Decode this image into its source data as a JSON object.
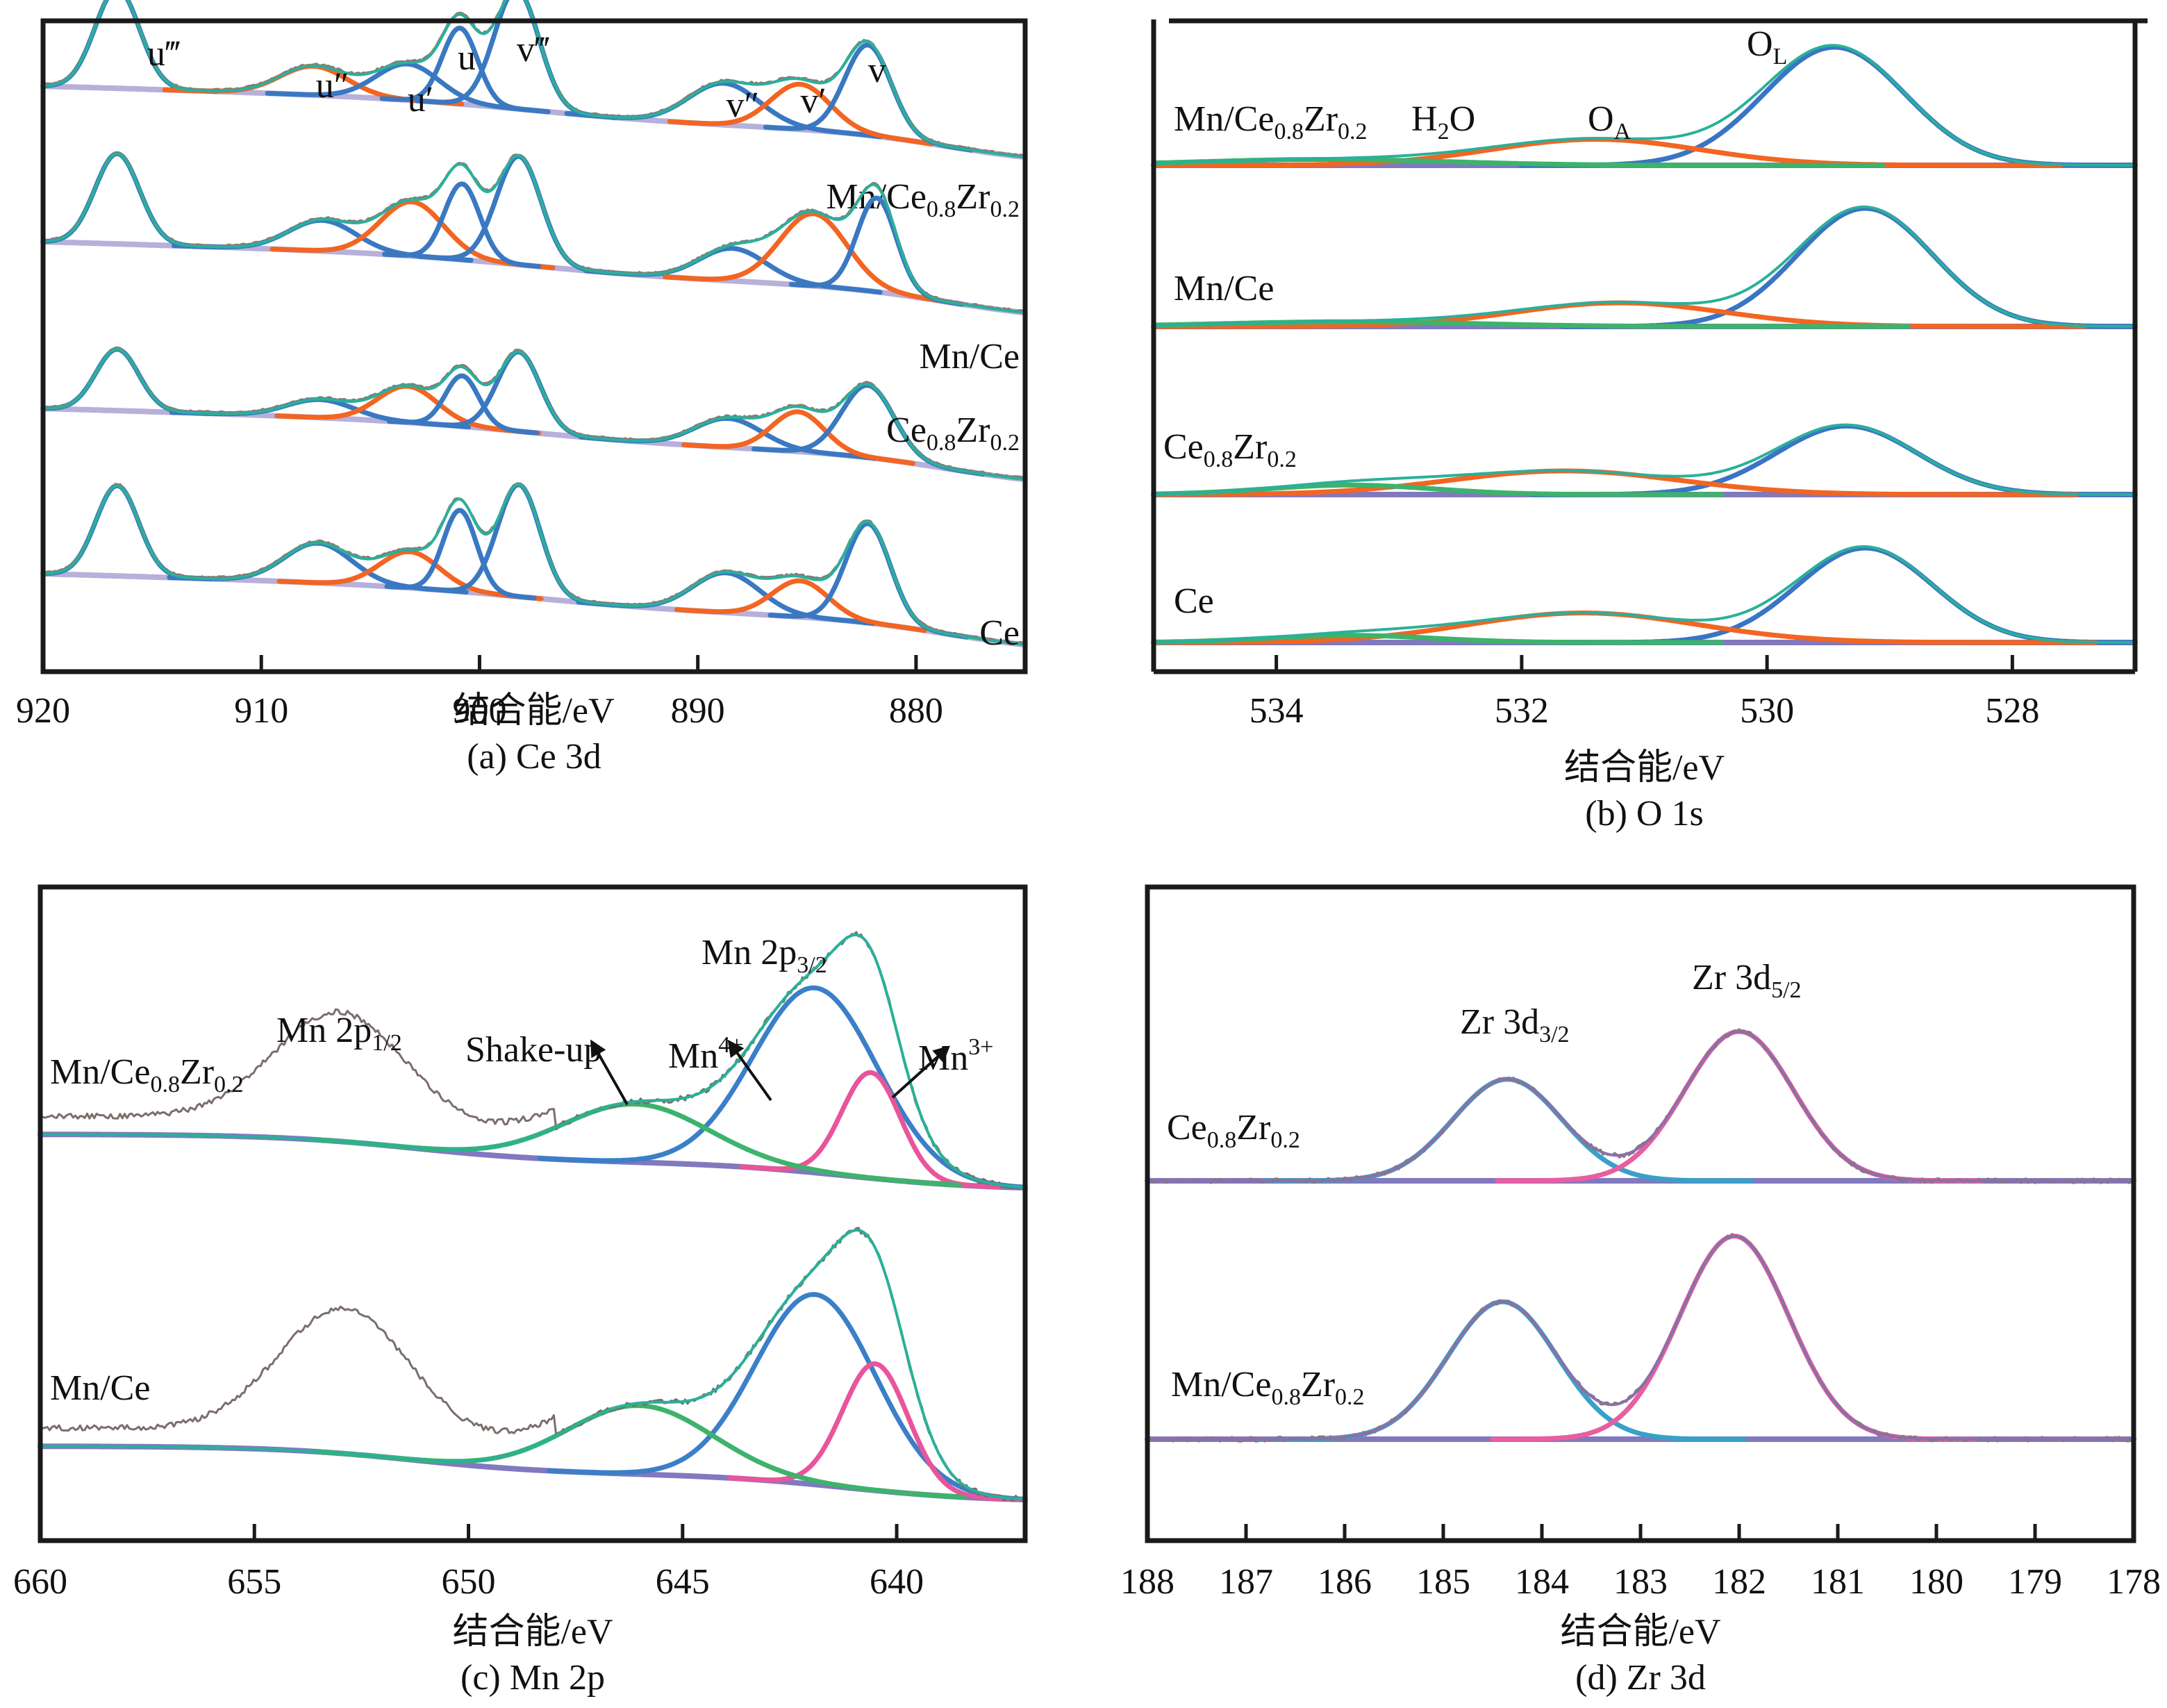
{
  "figure": {
    "axis_title": "结合能/eV",
    "y_axis": "Intensity (a.u., stacked, no ticks)"
  },
  "chart_data": [
    {
      "id": "a",
      "type": "line",
      "title": "(a) Ce 3d",
      "xlabel": "结合能/eV",
      "ylabel": "",
      "xlim": [
        920,
        875
      ],
      "xticks": [
        920,
        910,
        900,
        890,
        880
      ],
      "grid": false,
      "component_colors": {
        "Ce4+": "#3a78c2",
        "Ce3+": "#f26522",
        "envelope": "#2ab09a",
        "fit": "#3aa3c4",
        "background": "#aaa2d4",
        "raw": "#8a7a78"
      },
      "peak_labels": [
        {
          "text": "u",
          "primes": "‴",
          "x": 916.5
        },
        {
          "text": "u",
          "primes": "″",
          "x": 907.5
        },
        {
          "text": "u",
          "primes": "′",
          "x": 903.3
        },
        {
          "text": "u",
          "primes": "",
          "x": 901.0
        },
        {
          "text": "v",
          "primes": "‴",
          "x": 898.3
        },
        {
          "text": "v",
          "primes": "″",
          "x": 888.7
        },
        {
          "text": "v",
          "primes": "′",
          "x": 885.3
        },
        {
          "text": "v",
          "primes": "",
          "x": 882.2
        }
      ],
      "series": [
        {
          "name": "Mn/Ce0.8Zr0.2",
          "label": {
            "base": "Mn/Ce",
            "s1": "0.8",
            "mid": "Zr",
            "s2": "0.2"
          },
          "peaks": [
            {
              "component": "Ce4+",
              "center": 916.6,
              "fwhm": 2.4,
              "height": 0.55,
              "tag": "u‴"
            },
            {
              "component": "Ce3+",
              "center": 907.6,
              "fwhm": 3.6,
              "height": 0.16,
              "tag": "u″"
            },
            {
              "component": "Ce4+",
              "center": 903.3,
              "fwhm": 3.4,
              "height": 0.2,
              "tag": "u′"
            },
            {
              "component": "Ce4+",
              "center": 900.9,
              "fwhm": 1.9,
              "height": 0.42,
              "tag": "u"
            },
            {
              "component": "Ce4+",
              "center": 898.3,
              "fwhm": 2.4,
              "height": 0.66,
              "tag": "v‴"
            },
            {
              "component": "Ce4+",
              "center": 888.8,
              "fwhm": 3.8,
              "height": 0.23,
              "tag": "v″"
            },
            {
              "component": "Ce3+",
              "center": 885.3,
              "fwhm": 3.2,
              "height": 0.25,
              "tag": "v′"
            },
            {
              "component": "Ce4+",
              "center": 882.2,
              "fwhm": 2.5,
              "height": 0.5,
              "tag": "v"
            }
          ]
        },
        {
          "name": "Mn/Ce",
          "label": {
            "base": "Mn/Ce",
            "s1": "",
            "mid": "",
            "s2": ""
          },
          "peaks": [
            {
              "component": "Ce4+",
              "center": 916.6,
              "fwhm": 2.4,
              "height": 0.5
            },
            {
              "component": "Ce4+",
              "center": 907.2,
              "fwhm": 3.6,
              "height": 0.17
            },
            {
              "component": "Ce3+",
              "center": 903.1,
              "fwhm": 3.4,
              "height": 0.3
            },
            {
              "component": "Ce4+",
              "center": 900.8,
              "fwhm": 1.9,
              "height": 0.42
            },
            {
              "component": "Ce4+",
              "center": 898.2,
              "fwhm": 2.4,
              "height": 0.6
            },
            {
              "component": "Ce4+",
              "center": 888.4,
              "fwhm": 3.6,
              "height": 0.18
            },
            {
              "component": "Ce3+",
              "center": 884.7,
              "fwhm": 3.6,
              "height": 0.4
            },
            {
              "component": "Ce4+",
              "center": 881.8,
              "fwhm": 2.1,
              "height": 0.52
            }
          ]
        },
        {
          "name": "Ce0.8Zr0.2",
          "label": {
            "base": "Ce",
            "s1": "0.8",
            "mid": "Zr",
            "s2": "0.2"
          },
          "peaks": [
            {
              "component": "Ce4+",
              "center": 916.6,
              "fwhm": 2.3,
              "height": 0.34
            },
            {
              "component": "Ce4+",
              "center": 907.3,
              "fwhm": 3.6,
              "height": 0.1
            },
            {
              "component": "Ce3+",
              "center": 903.3,
              "fwhm": 3.2,
              "height": 0.2
            },
            {
              "component": "Ce4+",
              "center": 900.8,
              "fwhm": 1.8,
              "height": 0.28
            },
            {
              "component": "Ce4+",
              "center": 898.2,
              "fwhm": 2.3,
              "height": 0.44
            },
            {
              "component": "Ce4+",
              "center": 888.6,
              "fwhm": 3.6,
              "height": 0.16
            },
            {
              "component": "Ce3+",
              "center": 885.4,
              "fwhm": 2.8,
              "height": 0.22
            },
            {
              "component": "Ce4+",
              "center": 882.2,
              "fwhm": 2.8,
              "height": 0.4
            }
          ]
        },
        {
          "name": "Ce",
          "label": {
            "base": "Ce",
            "s1": "",
            "mid": "",
            "s2": ""
          },
          "peaks": [
            {
              "component": "Ce4+",
              "center": 916.6,
              "fwhm": 2.3,
              "height": 0.5
            },
            {
              "component": "Ce4+",
              "center": 907.4,
              "fwhm": 3.6,
              "height": 0.22
            },
            {
              "component": "Ce3+",
              "center": 903.2,
              "fwhm": 3.2,
              "height": 0.2
            },
            {
              "component": "Ce4+",
              "center": 900.9,
              "fwhm": 1.8,
              "height": 0.45
            },
            {
              "component": "Ce4+",
              "center": 898.2,
              "fwhm": 2.3,
              "height": 0.62
            },
            {
              "component": "Ce4+",
              "center": 888.7,
              "fwhm": 3.6,
              "height": 0.22
            },
            {
              "component": "Ce3+",
              "center": 885.3,
              "fwhm": 3.0,
              "height": 0.2
            },
            {
              "component": "Ce4+",
              "center": 882.2,
              "fwhm": 2.4,
              "height": 0.55
            }
          ]
        }
      ]
    },
    {
      "id": "b",
      "type": "line",
      "title": "(b) O 1s",
      "xlabel": "结合能/eV",
      "ylabel": "",
      "xlim": [
        535,
        527
      ],
      "xticks": [
        534,
        532,
        530,
        528
      ],
      "grid": false,
      "component_colors": {
        "O_L": "#3a74c4",
        "O_A": "#f26522",
        "H2O": "#3db36b",
        "envelope": "#2ab09a",
        "fit": "#3aa3c4",
        "background": "#6a62b4"
      },
      "peak_labels": [
        {
          "text": "O",
          "sub": "L",
          "x": 529.8
        },
        {
          "text": "O",
          "sub": "A",
          "x": 531.4
        },
        {
          "text": "H",
          "sub": "2",
          "after": "O",
          "x": 533.8
        }
      ],
      "series": [
        {
          "name": "Mn/Ce0.8Zr0.2",
          "label": {
            "base": "Mn/Ce",
            "s1": "0.8",
            "mid": "Zr",
            "s2": "0.2"
          },
          "peaks": [
            {
              "component": "O_L",
              "center": 529.45,
              "fwhm": 1.35,
              "height": 1.0
            },
            {
              "component": "O_A",
              "center": 531.4,
              "fwhm": 2.0,
              "height": 0.22
            },
            {
              "component": "H2O",
              "center": 533.6,
              "fwhm": 2.4,
              "height": 0.05
            }
          ]
        },
        {
          "name": "Mn/Ce",
          "label": {
            "base": "Mn/Ce",
            "s1": "",
            "mid": "",
            "s2": ""
          },
          "peaks": [
            {
              "component": "O_L",
              "center": 529.2,
              "fwhm": 1.3,
              "height": 1.0
            },
            {
              "component": "O_A",
              "center": 531.2,
              "fwhm": 2.0,
              "height": 0.2
            },
            {
              "component": "H2O",
              "center": 533.4,
              "fwhm": 2.4,
              "height": 0.04
            }
          ]
        },
        {
          "name": "Ce0.8Zr0.2",
          "label": {
            "base": "Ce",
            "s1": "0.8",
            "mid": "Zr",
            "s2": "0.2"
          },
          "peaks": [
            {
              "component": "O_L",
              "center": 529.35,
              "fwhm": 1.35,
              "height": 0.58
            },
            {
              "component": "O_A",
              "center": 531.65,
              "fwhm": 2.2,
              "height": 0.2
            },
            {
              "component": "H2O",
              "center": 533.4,
              "fwhm": 1.6,
              "height": 0.08
            }
          ]
        },
        {
          "name": "Ce",
          "label": {
            "base": "Ce",
            "s1": "",
            "mid": "",
            "s2": ""
          },
          "peaks": [
            {
              "component": "O_L",
              "center": 529.2,
              "fwhm": 1.3,
              "height": 0.8
            },
            {
              "component": "O_A",
              "center": 531.5,
              "fwhm": 2.2,
              "height": 0.25
            },
            {
              "component": "H2O",
              "center": 533.4,
              "fwhm": 1.6,
              "height": 0.06
            }
          ]
        }
      ]
    },
    {
      "id": "c",
      "type": "line",
      "title": "(c) Mn 2p",
      "xlabel": "结合能/eV",
      "ylabel": "",
      "xlim": [
        660,
        637
      ],
      "xticks": [
        660,
        655,
        650,
        645,
        640
      ],
      "grid": false,
      "component_colors": {
        "Mn4+": "#3a7fc8",
        "Mn3+": "#e8559a",
        "Shake-up": "#3db36b",
        "envelope": "#2ab09a",
        "background": "#6a62b4",
        "raw": "#7a6e6a"
      },
      "peak_labels": [
        {
          "text": "Mn 2p",
          "sub": "3/2",
          "x": 642.5
        },
        {
          "text": "Mn 2p",
          "sub": "1/2",
          "x": 652.5
        },
        {
          "text": "Shake-up",
          "x": 646.9,
          "arrow_to": 646.0
        },
        {
          "text": "Mn",
          "sup": "4+",
          "x": 644.5,
          "arrow_to": 643.5
        },
        {
          "text": "Mn",
          "sup": "3+",
          "x": 638.6,
          "arrow_to": 640.0
        }
      ],
      "series": [
        {
          "name": "Mn/Ce0.8Zr0.2",
          "label": {
            "base": "Mn/Ce",
            "s1": "0.8",
            "mid": "Zr",
            "s2": "0.2"
          },
          "raw_2p12": {
            "center": 653.0,
            "fwhm": 3.6,
            "height": 0.42
          },
          "peaks": [
            {
              "component": "Mn4+",
              "center": 641.9,
              "fwhm": 3.4,
              "height": 0.7
            },
            {
              "component": "Mn3+",
              "center": 640.6,
              "fwhm": 1.6,
              "height": 0.4
            },
            {
              "component": "Shake-up",
              "center": 646.1,
              "fwhm": 4.0,
              "height": 0.22
            }
          ]
        },
        {
          "name": "Mn/Ce",
          "label": {
            "base": "Mn/Ce",
            "s1": "",
            "mid": "",
            "s2": ""
          },
          "raw_2p12": {
            "center": 652.9,
            "fwhm": 3.6,
            "height": 0.48
          },
          "peaks": [
            {
              "component": "Mn4+",
              "center": 641.9,
              "fwhm": 3.3,
              "height": 0.72
            },
            {
              "component": "Mn3+",
              "center": 640.5,
              "fwhm": 1.8,
              "height": 0.48
            },
            {
              "component": "Shake-up",
              "center": 646.0,
              "fwhm": 4.0,
              "height": 0.26
            }
          ]
        }
      ]
    },
    {
      "id": "d",
      "type": "line",
      "title": "(d) Zr 3d",
      "xlabel": "结合能/eV",
      "ylabel": "",
      "xlim": [
        188,
        178
      ],
      "xticks": [
        188,
        187,
        186,
        185,
        184,
        183,
        182,
        181,
        180,
        179,
        178
      ],
      "grid": false,
      "component_colors": {
        "Zr 3d3/2": "#3aa0c8",
        "Zr 3d5/2": "#e85ea0",
        "envelope": "#8a70a8",
        "background": "#6a62b4"
      },
      "peak_labels": [
        {
          "text": "Zr 3d",
          "sub": "5/2",
          "x": 182.0
        },
        {
          "text": "Zr 3d",
          "sub": "3/2",
          "x": 184.3
        }
      ],
      "series": [
        {
          "name": "Ce0.8Zr0.2",
          "label": {
            "base": "Ce",
            "s1": "0.8",
            "mid": "Zr",
            "s2": "0.2"
          },
          "peaks": [
            {
              "component": "Zr 3d3/2",
              "center": 184.35,
              "fwhm": 1.3,
              "height": 0.68
            },
            {
              "component": "Zr 3d5/2",
              "center": 182.0,
              "fwhm": 1.3,
              "height": 1.0
            }
          ]
        },
        {
          "name": "Mn/Ce0.8Zr0.2",
          "label": {
            "base": "Mn/Ce",
            "s1": "0.8",
            "mid": "Zr",
            "s2": "0.2"
          },
          "peaks": [
            {
              "component": "Zr 3d3/2",
              "center": 184.4,
              "fwhm": 1.3,
              "height": 0.92
            },
            {
              "component": "Zr 3d5/2",
              "center": 182.05,
              "fwhm": 1.3,
              "height": 1.36
            }
          ]
        }
      ]
    }
  ]
}
